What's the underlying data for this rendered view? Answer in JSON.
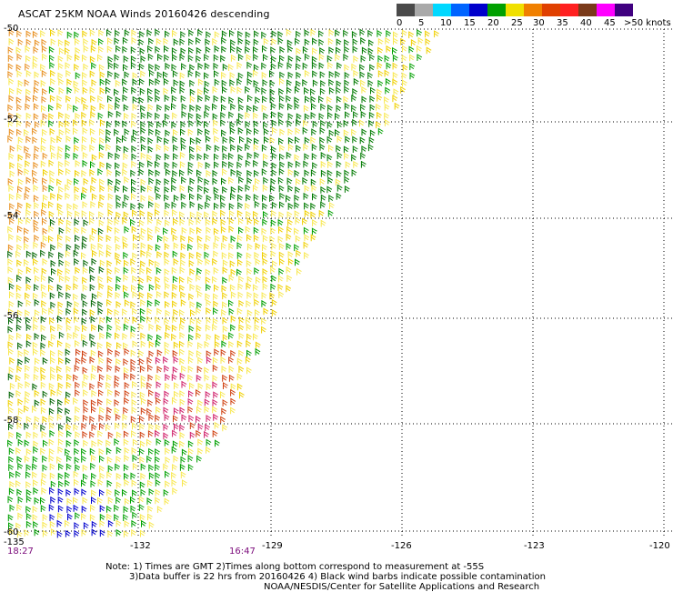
{
  "title": "ASCAT 25KM NOAA Winds 20160426 descending",
  "legend": {
    "labels": [
      "0",
      "5",
      "10",
      "15",
      "20",
      "25",
      "30",
      "35",
      "40",
      "45",
      ">50 knots"
    ],
    "colors": [
      "#4a4a4a",
      "#a9a9a9",
      "#00d8ff",
      "#0064ff",
      "#0000cc",
      "#00a000",
      "#f0e000",
      "#f08000",
      "#e04000",
      "#ff2020",
      "#7a3a1a",
      "#ff00ff",
      "#400080"
    ]
  },
  "map": {
    "lat_labels": [
      "-50",
      "-52",
      "-54",
      "-56",
      "-58",
      "-60"
    ],
    "lon_labels": [
      "-135",
      "-132",
      "-129",
      "-126",
      "-123",
      "-120"
    ],
    "time_labels": [
      "18:27",
      "16:47"
    ]
  },
  "notes": {
    "line1": "Note: 1) Times are GMT 2)Times along bottom correspond to measurement at -55S",
    "line2": "3)Data buffer is 22 hrs from 20160426 4) Black wind barbs indicate possible contamination",
    "line3": "NOAA/NESDIS/Center for Satellite Applications and Research"
  }
}
